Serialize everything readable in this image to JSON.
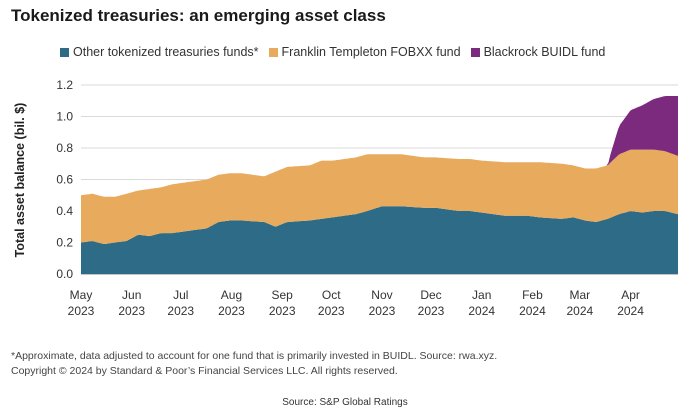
{
  "title": "Tokenized treasuries: an emerging asset class",
  "footnote_lines": [
    "*Approximate, data adjusted to account for one fund that is primarily invested in BUIDL. Source: rwa.xyz.",
    "Copyright © 2024 by Standard & Poor’s Financial Services LLC. All rights reserved."
  ],
  "source": "Source: S&P Global Ratings",
  "chart_data": {
    "type": "area",
    "stacked": true,
    "title": "Tokenized treasuries: an emerging asset class",
    "xlabel": "",
    "ylabel": "Total asset balance (bil. $)",
    "ylim": [
      0,
      1.2
    ],
    "yticks": [
      0.0,
      0.2,
      0.4,
      0.6,
      0.8,
      1.0,
      1.2
    ],
    "ytick_labels": [
      "0.0",
      "0.2",
      "0.4",
      "0.6",
      "0.8",
      "1.0",
      "1.2"
    ],
    "xlim": [
      "2023-05-01",
      "2024-04-30"
    ],
    "xticks": [
      {
        "date": "2023-05-01",
        "month": "May",
        "year": "2023"
      },
      {
        "date": "2023-06-01",
        "month": "Jun",
        "year": "2023"
      },
      {
        "date": "2023-07-01",
        "month": "Jul",
        "year": "2023"
      },
      {
        "date": "2023-08-01",
        "month": "Aug",
        "year": "2023"
      },
      {
        "date": "2023-09-01",
        "month": "Sep",
        "year": "2023"
      },
      {
        "date": "2023-10-01",
        "month": "Oct",
        "year": "2023"
      },
      {
        "date": "2023-11-01",
        "month": "Nov",
        "year": "2023"
      },
      {
        "date": "2023-12-01",
        "month": "Dec",
        "year": "2023"
      },
      {
        "date": "2024-01-01",
        "month": "Jan",
        "year": "2024"
      },
      {
        "date": "2024-02-01",
        "month": "Feb",
        "year": "2024"
      },
      {
        "date": "2024-03-01",
        "month": "Mar",
        "year": "2024"
      },
      {
        "date": "2024-04-01",
        "month": "Apr",
        "year": "2024"
      }
    ],
    "grid": "horizontal",
    "legend": "top-left",
    "series": [
      {
        "name": "Other tokenized treasuries funds*",
        "color": "#2e6b87",
        "points": [
          [
            "2023-05-01",
            0.2
          ],
          [
            "2023-05-08",
            0.21
          ],
          [
            "2023-05-15",
            0.19
          ],
          [
            "2023-05-22",
            0.2
          ],
          [
            "2023-05-29",
            0.21
          ],
          [
            "2023-06-05",
            0.25
          ],
          [
            "2023-06-12",
            0.24
          ],
          [
            "2023-06-19",
            0.26
          ],
          [
            "2023-06-26",
            0.26
          ],
          [
            "2023-07-03",
            0.27
          ],
          [
            "2023-07-17",
            0.29
          ],
          [
            "2023-07-24",
            0.33
          ],
          [
            "2023-07-31",
            0.34
          ],
          [
            "2023-08-07",
            0.34
          ],
          [
            "2023-08-21",
            0.33
          ],
          [
            "2023-08-28",
            0.3
          ],
          [
            "2023-09-04",
            0.33
          ],
          [
            "2023-09-18",
            0.34
          ],
          [
            "2023-09-25",
            0.35
          ],
          [
            "2023-10-02",
            0.36
          ],
          [
            "2023-10-16",
            0.38
          ],
          [
            "2023-10-23",
            0.4
          ],
          [
            "2023-11-01",
            0.43
          ],
          [
            "2023-11-13",
            0.43
          ],
          [
            "2023-11-27",
            0.42
          ],
          [
            "2023-12-04",
            0.42
          ],
          [
            "2023-12-18",
            0.4
          ],
          [
            "2023-12-25",
            0.4
          ],
          [
            "2024-01-01",
            0.39
          ],
          [
            "2024-01-15",
            0.37
          ],
          [
            "2024-01-29",
            0.37
          ],
          [
            "2024-02-05",
            0.36
          ],
          [
            "2024-02-19",
            0.35
          ],
          [
            "2024-02-26",
            0.36
          ],
          [
            "2024-03-04",
            0.34
          ],
          [
            "2024-03-11",
            0.33
          ],
          [
            "2024-03-18",
            0.35
          ],
          [
            "2024-03-25",
            0.38
          ],
          [
            "2024-04-01",
            0.4
          ],
          [
            "2024-04-08",
            0.39
          ],
          [
            "2024-04-15",
            0.4
          ],
          [
            "2024-04-22",
            0.4
          ],
          [
            "2024-04-30",
            0.38
          ]
        ]
      },
      {
        "name": "Franklin Templeton FOBXX fund",
        "color": "#e8aa5c",
        "points": [
          [
            "2023-05-01",
            0.3
          ],
          [
            "2023-05-08",
            0.3
          ],
          [
            "2023-05-15",
            0.3
          ],
          [
            "2023-05-22",
            0.29
          ],
          [
            "2023-05-29",
            0.3
          ],
          [
            "2023-06-05",
            0.28
          ],
          [
            "2023-06-12",
            0.3
          ],
          [
            "2023-06-19",
            0.29
          ],
          [
            "2023-06-26",
            0.31
          ],
          [
            "2023-07-03",
            0.31
          ],
          [
            "2023-07-17",
            0.31
          ],
          [
            "2023-07-24",
            0.3
          ],
          [
            "2023-07-31",
            0.3
          ],
          [
            "2023-08-07",
            0.3
          ],
          [
            "2023-08-21",
            0.29
          ],
          [
            "2023-08-28",
            0.35
          ],
          [
            "2023-09-04",
            0.35
          ],
          [
            "2023-09-18",
            0.35
          ],
          [
            "2023-09-25",
            0.37
          ],
          [
            "2023-10-02",
            0.36
          ],
          [
            "2023-10-16",
            0.36
          ],
          [
            "2023-10-23",
            0.36
          ],
          [
            "2023-11-01",
            0.33
          ],
          [
            "2023-11-13",
            0.33
          ],
          [
            "2023-11-27",
            0.32
          ],
          [
            "2023-12-04",
            0.32
          ],
          [
            "2023-12-18",
            0.33
          ],
          [
            "2023-12-25",
            0.33
          ],
          [
            "2024-01-01",
            0.33
          ],
          [
            "2024-01-15",
            0.34
          ],
          [
            "2024-01-29",
            0.34
          ],
          [
            "2024-02-05",
            0.35
          ],
          [
            "2024-02-19",
            0.35
          ],
          [
            "2024-02-26",
            0.33
          ],
          [
            "2024-03-04",
            0.33
          ],
          [
            "2024-03-11",
            0.34
          ],
          [
            "2024-03-18",
            0.34
          ],
          [
            "2024-03-25",
            0.38
          ],
          [
            "2024-04-01",
            0.39
          ],
          [
            "2024-04-08",
            0.4
          ],
          [
            "2024-04-15",
            0.39
          ],
          [
            "2024-04-22",
            0.38
          ],
          [
            "2024-04-30",
            0.37
          ]
        ]
      },
      {
        "name": "Blackrock BUIDL fund",
        "color": "#7b2a7e",
        "points": [
          [
            "2023-05-01",
            0
          ],
          [
            "2024-03-18",
            0
          ],
          [
            "2024-03-20",
            0.06
          ],
          [
            "2024-03-25",
            0.18
          ],
          [
            "2024-04-01",
            0.25
          ],
          [
            "2024-04-08",
            0.28
          ],
          [
            "2024-04-15",
            0.32
          ],
          [
            "2024-04-22",
            0.35
          ],
          [
            "2024-04-30",
            0.38
          ]
        ]
      }
    ]
  }
}
